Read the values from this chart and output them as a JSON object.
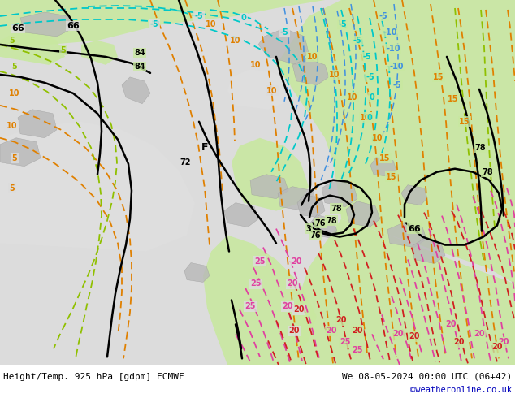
{
  "title_left": "Height/Temp. 925 hPa [gdpm] ECMWF",
  "title_right": "We 08-05-2024 00:00 UTC (06+42)",
  "credit": "©weatheronline.co.uk",
  "bg_ocean": "#dcdcdc",
  "bg_land_green": "#c8e8a0",
  "bg_land_green2": "#b8d890",
  "bg_land_green_bright": "#d8f0b0",
  "bg_gray_terrain": "#b8b8b8",
  "bg_light_gray": "#e8e8e8",
  "black_line": "#000000",
  "orange_line": "#e08000",
  "lime_line": "#90c000",
  "cyan_line": "#00c8c8",
  "blue_line": "#4090e0",
  "pink_line": "#e040a0",
  "red_line": "#d02020",
  "dkgreen_line": "#208040",
  "label_left_color": "#000000",
  "label_right_color": "#000000",
  "credit_color": "#0000bb",
  "bottom_bg": "#ffffff",
  "figsize": [
    6.34,
    4.9
  ],
  "dpi": 100
}
